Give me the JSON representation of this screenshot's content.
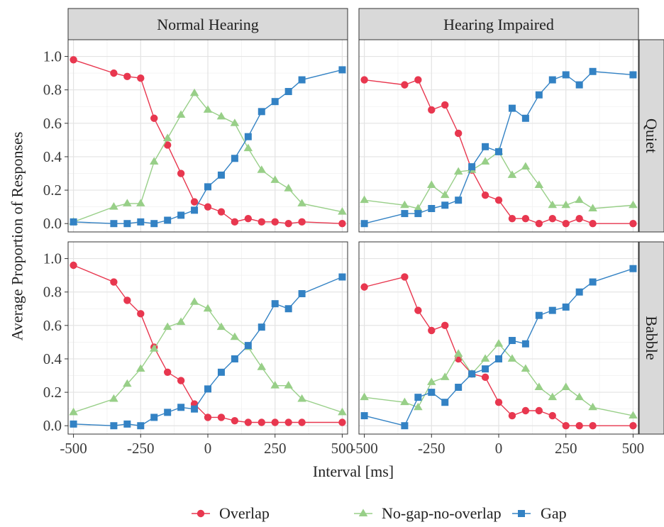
{
  "chart_data": {
    "type": "line",
    "xlabel": "Interval [ms]",
    "ylabel": "Average Proportion of Responses",
    "xlim": [
      -520,
      520
    ],
    "ylim": [
      -0.05,
      1.1
    ],
    "x_ticks": [
      -500,
      -250,
      0,
      250,
      500
    ],
    "x_tick_labels": [
      "-500",
      "-250",
      "0",
      "250",
      "500"
    ],
    "y_ticks": [
      0,
      0.2,
      0.4,
      0.6,
      0.8,
      1.0
    ],
    "y_tick_labels": [
      "0.0",
      "0.2",
      "0.4",
      "0.6",
      "0.8",
      "1.0"
    ],
    "grid": true,
    "legend_position": "bottom",
    "col_facets": [
      "Normal Hearing",
      "Hearing Impaired"
    ],
    "row_facets": [
      "Quiet",
      "Babble"
    ],
    "x": [
      -500,
      -350,
      -300,
      -250,
      -200,
      -150,
      -100,
      -50,
      0,
      50,
      100,
      150,
      200,
      250,
      300,
      350,
      500
    ],
    "series_styles": [
      {
        "name": "Overlap",
        "color": "#E8374F",
        "marker": "circle"
      },
      {
        "name": "No-gap-no-overlap",
        "color": "#98CF88",
        "marker": "triangle"
      },
      {
        "name": "Gap",
        "color": "#3382C4",
        "marker": "square"
      }
    ],
    "panels": [
      {
        "col": "Normal Hearing",
        "row": "Quiet",
        "series": [
          {
            "name": "Overlap",
            "values": [
              0.98,
              0.9,
              0.88,
              0.87,
              0.63,
              0.47,
              0.3,
              0.13,
              0.1,
              0.07,
              0.01,
              0.03,
              0.01,
              0.01,
              0.0,
              0.01,
              0.0
            ]
          },
          {
            "name": "No-gap-no-overlap",
            "values": [
              0.01,
              0.1,
              0.12,
              0.12,
              0.37,
              0.51,
              0.65,
              0.78,
              0.68,
              0.64,
              0.6,
              0.45,
              0.32,
              0.26,
              0.21,
              0.12,
              0.07
            ]
          },
          {
            "name": "Gap",
            "values": [
              0.01,
              0.0,
              0.0,
              0.01,
              0.0,
              0.02,
              0.05,
              0.08,
              0.22,
              0.29,
              0.39,
              0.52,
              0.67,
              0.73,
              0.79,
              0.86,
              0.92
            ]
          }
        ]
      },
      {
        "col": "Hearing Impaired",
        "row": "Quiet",
        "series": [
          {
            "name": "Overlap",
            "values": [
              0.86,
              0.83,
              0.86,
              0.68,
              0.71,
              0.54,
              0.32,
              0.17,
              0.14,
              0.03,
              0.03,
              0.0,
              0.03,
              0.0,
              0.03,
              0.0,
              0.0
            ]
          },
          {
            "name": "No-gap-no-overlap",
            "values": [
              0.14,
              0.11,
              0.09,
              0.23,
              0.17,
              0.31,
              0.32,
              0.37,
              0.43,
              0.29,
              0.34,
              0.23,
              0.11,
              0.11,
              0.14,
              0.09,
              0.11
            ]
          },
          {
            "name": "Gap",
            "values": [
              0.0,
              0.06,
              0.06,
              0.09,
              0.11,
              0.14,
              0.34,
              0.46,
              0.43,
              0.69,
              0.63,
              0.77,
              0.86,
              0.89,
              0.83,
              0.91,
              0.89
            ]
          }
        ]
      },
      {
        "col": "Normal Hearing",
        "row": "Babble",
        "series": [
          {
            "name": "Overlap",
            "values": [
              0.96,
              0.86,
              0.75,
              0.67,
              0.47,
              0.32,
              0.27,
              0.13,
              0.05,
              0.05,
              0.03,
              0.02,
              0.02,
              0.02,
              0.02,
              0.02,
              0.02
            ]
          },
          {
            "name": "No-gap-no-overlap",
            "values": [
              0.08,
              0.16,
              0.25,
              0.34,
              0.46,
              0.59,
              0.62,
              0.74,
              0.7,
              0.59,
              0.53,
              0.47,
              0.35,
              0.24,
              0.24,
              0.16,
              0.08
            ]
          },
          {
            "name": "Gap",
            "values": [
              0.01,
              0.0,
              0.01,
              0.0,
              0.05,
              0.08,
              0.11,
              0.1,
              0.22,
              0.32,
              0.4,
              0.48,
              0.59,
              0.73,
              0.7,
              0.79,
              0.89
            ]
          }
        ]
      },
      {
        "col": "Hearing Impaired",
        "row": "Babble",
        "series": [
          {
            "name": "Overlap",
            "values": [
              0.83,
              0.89,
              0.69,
              0.57,
              0.6,
              0.4,
              0.31,
              0.29,
              0.14,
              0.06,
              0.09,
              0.09,
              0.06,
              0.0,
              0.0,
              0.0,
              0.0
            ]
          },
          {
            "name": "No-gap-no-overlap",
            "values": [
              0.17,
              0.14,
              0.11,
              0.26,
              0.29,
              0.43,
              0.31,
              0.4,
              0.49,
              0.4,
              0.34,
              0.23,
              0.17,
              0.23,
              0.17,
              0.11,
              0.06
            ]
          },
          {
            "name": "Gap",
            "values": [
              0.06,
              0.0,
              0.17,
              0.2,
              0.14,
              0.23,
              0.31,
              0.34,
              0.4,
              0.51,
              0.49,
              0.66,
              0.69,
              0.71,
              0.8,
              0.86,
              0.94
            ]
          }
        ]
      }
    ],
    "legend": [
      "Overlap",
      "No-gap-no-overlap",
      "Gap"
    ]
  }
}
